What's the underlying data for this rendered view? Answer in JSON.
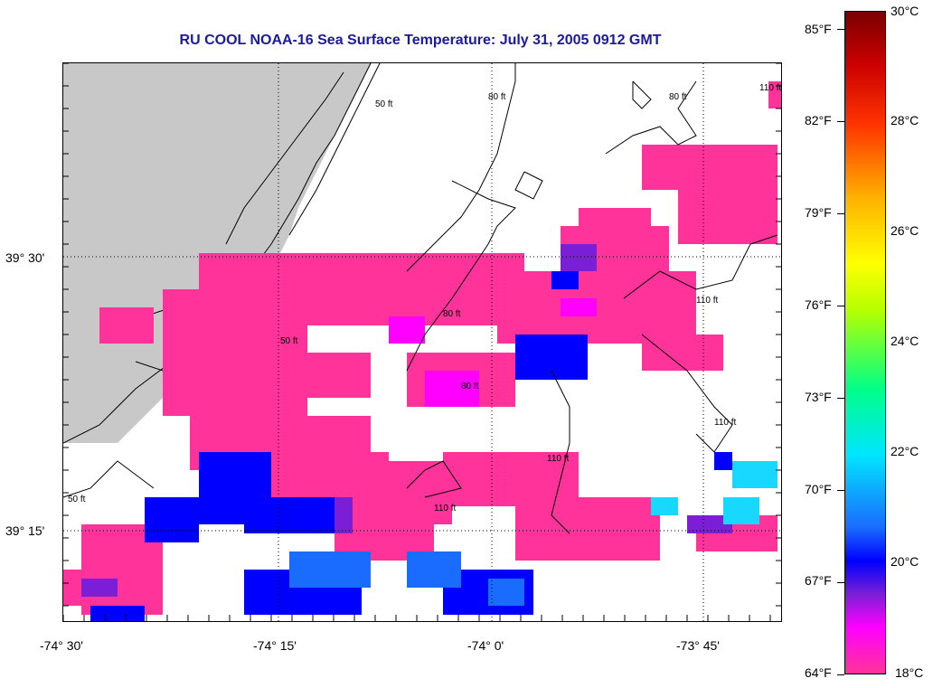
{
  "title": "RU COOL  NOAA-16  Sea Surface Temperature:  July 31, 2005 0912 GMT",
  "map": {
    "x_ticks": [
      "-74° 30'",
      "-74° 15'",
      "-74° 0'",
      "-73° 45'"
    ],
    "y_ticks": [
      "39° 30'",
      "39° 15'"
    ],
    "contour_labels": [
      "50 ft",
      "80 ft",
      "80 ft",
      "110 ft",
      "50 ft",
      "80 ft",
      "80 ft",
      "110 ft",
      "110 ft",
      "110 ft",
      "110 ft",
      "50 ft"
    ],
    "colors": {
      "land": "#c8c8c8",
      "sst_pink": "#ff3399",
      "sst_magenta": "#ff00ff",
      "sst_purple": "#7a1fd6",
      "sst_blue": "#0000ff",
      "sst_mid_blue": "#1a6bff",
      "sst_cyan": "#19d8ff",
      "contour": "#000000"
    }
  },
  "colorbar": {
    "fahrenheit_labels": [
      "85°F",
      "82°F",
      "79°F",
      "76°F",
      "73°F",
      "70°F",
      "67°F",
      "64°F"
    ],
    "celsius_labels": [
      "30°C",
      "28°C",
      "26°C",
      "24°C",
      "22°C",
      "20°C",
      "18°C"
    ],
    "range_celsius": [
      18,
      30
    ]
  }
}
